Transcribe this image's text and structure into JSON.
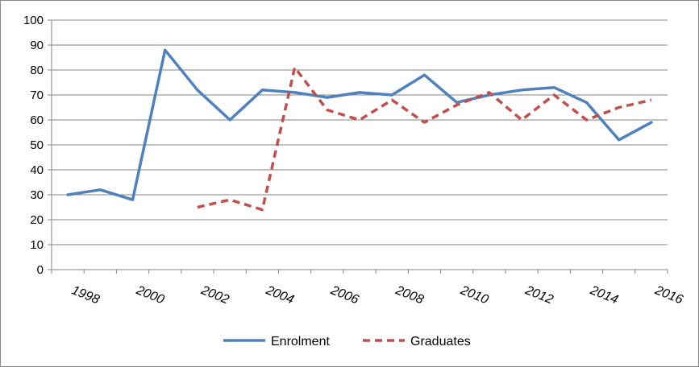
{
  "chart_data": {
    "type": "line",
    "title": "",
    "xlabel": "",
    "ylabel": "",
    "ylim": [
      0,
      100
    ],
    "yticks": [
      "0",
      "10",
      "20",
      "30",
      "40",
      "50",
      "60",
      "70",
      "80",
      "90",
      "100"
    ],
    "xticks": [
      "1998",
      "2000",
      "2002",
      "2004",
      "2006",
      "2008",
      "2010",
      "2012",
      "2014",
      "2016"
    ],
    "x": [
      1997,
      1998,
      1999,
      2000,
      2001,
      2002,
      2003,
      2004,
      2005,
      2006,
      2007,
      2008,
      2009,
      2010,
      2011,
      2012,
      2013,
      2014,
      2015
    ],
    "grid": true,
    "legend_position": "bottom",
    "series": [
      {
        "name": "Enrolment",
        "color": "#4f81bd",
        "style": "solid",
        "values": [
          30,
          32,
          28,
          88,
          72,
          60,
          72,
          71,
          69,
          71,
          70,
          78,
          67,
          70,
          72,
          73,
          67,
          52,
          59
        ]
      },
      {
        "name": "Graduates",
        "color": "#c0504d",
        "style": "dashed",
        "values": [
          null,
          null,
          null,
          null,
          25,
          28,
          24,
          81,
          64,
          60,
          68,
          59,
          66,
          71,
          60,
          70,
          60,
          65,
          68
        ]
      }
    ]
  }
}
